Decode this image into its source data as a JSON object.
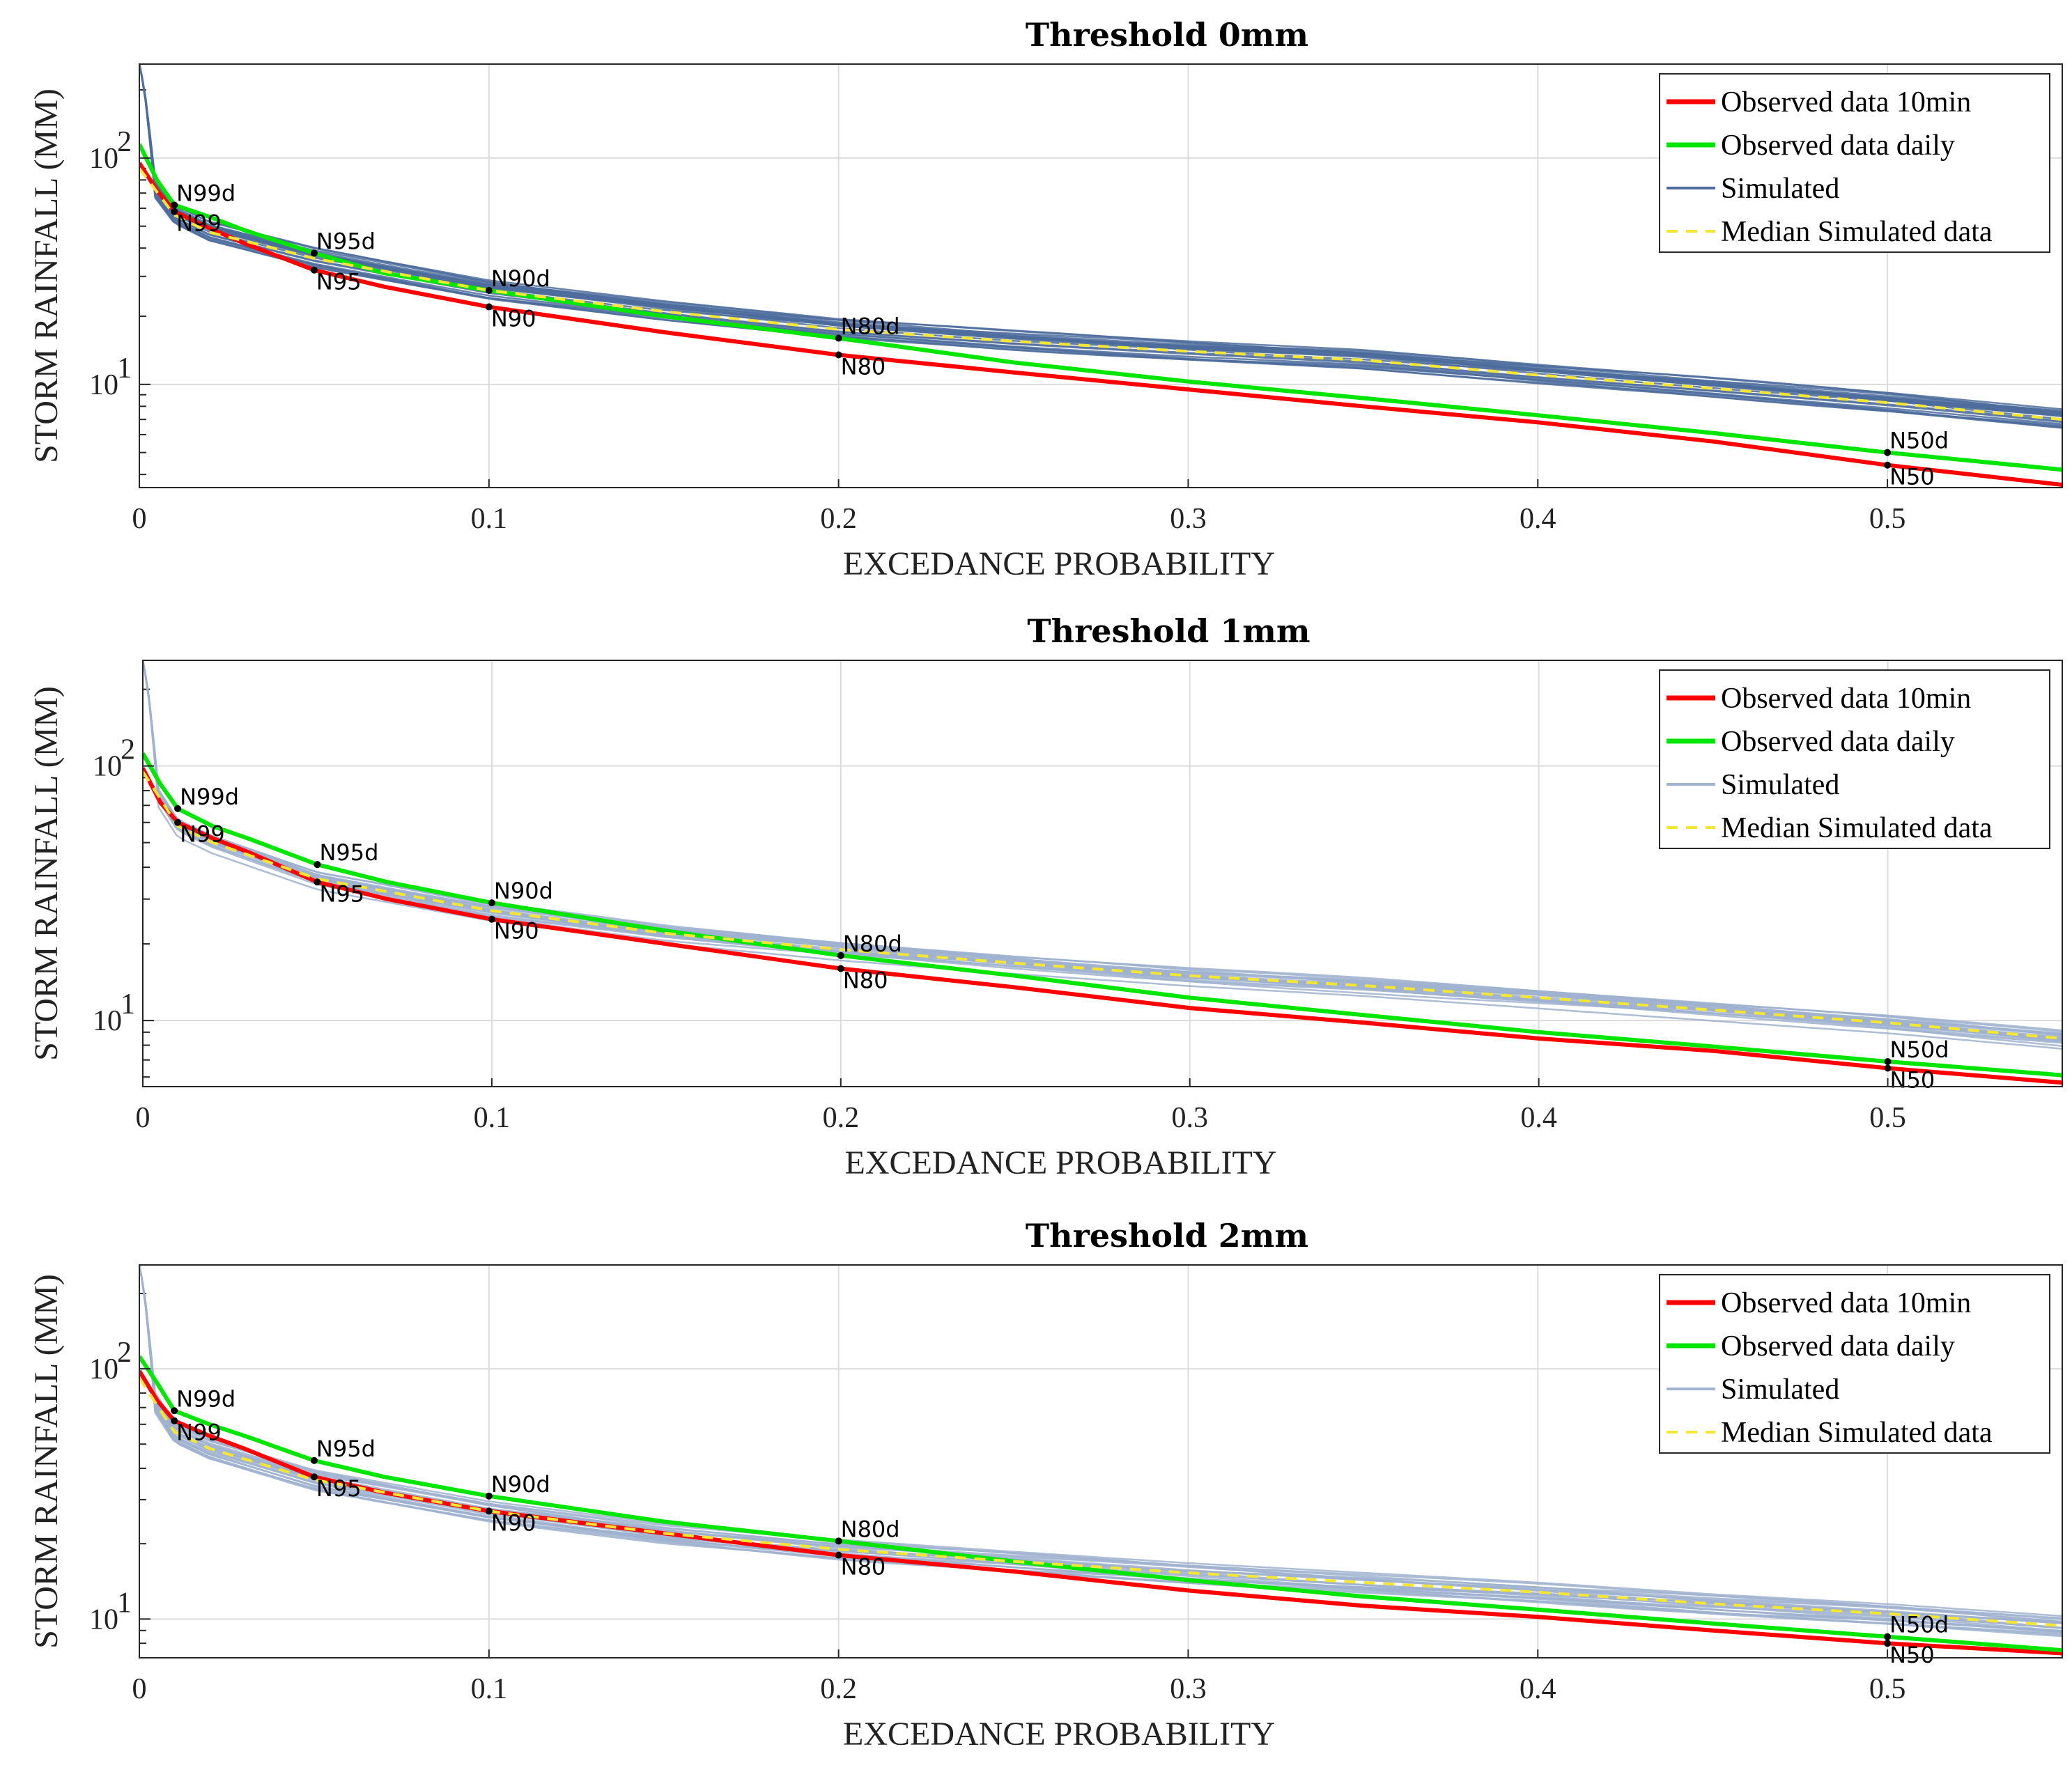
{
  "chart_data": [
    {
      "type": "line",
      "title": "Threshold 0mm",
      "xlabel": "EXCEDANCE PROBABILITY",
      "ylabel": "STORM RAINFALL (MM)",
      "yscale": "log",
      "xlim": [
        0,
        0.55
      ],
      "ylim": [
        3.5,
        260
      ],
      "x_ticks": [
        0,
        0.1,
        0.2,
        0.3,
        0.4,
        0.5
      ],
      "x_tick_labels": [
        "0",
        "0.1",
        "0.2",
        "0.3",
        "0.4",
        "0.5"
      ],
      "y_ticks": [
        10,
        100
      ],
      "y_tick_labels": [
        {
          "base": "10",
          "exp": "1"
        },
        {
          "base": "10",
          "exp": "2"
        }
      ],
      "grid": true,
      "legend": {
        "position": "top-right",
        "entries": [
          {
            "label": "Observed data 10min",
            "color": "#ff0000",
            "style": "solid"
          },
          {
            "label": "Observed data daily",
            "color": "#00e600",
            "style": "solid"
          },
          {
            "label": "Simulated",
            "color": "#4c6c9c",
            "style": "solid"
          },
          {
            "label": "Median Simulated data",
            "color": "#f5e632",
            "style": "dashed"
          }
        ]
      },
      "series": [
        {
          "name": "Observed data 10min",
          "color": "#ff0000",
          "points": [
            [
              0,
              95
            ],
            [
              0.005,
              72
            ],
            [
              0.01,
              58
            ],
            [
              0.02,
              49
            ],
            [
              0.03,
              42
            ],
            [
              0.05,
              32
            ],
            [
              0.07,
              27
            ],
            [
              0.1,
              22
            ],
            [
              0.15,
              17
            ],
            [
              0.2,
              13.5
            ],
            [
              0.25,
              11.3
            ],
            [
              0.3,
              9.5
            ],
            [
              0.35,
              8.0
            ],
            [
              0.4,
              6.8
            ],
            [
              0.45,
              5.6
            ],
            [
              0.5,
              4.4
            ],
            [
              0.55,
              3.6
            ]
          ]
        },
        {
          "name": "Observed data daily",
          "color": "#00e600",
          "points": [
            [
              0,
              115
            ],
            [
              0.005,
              80
            ],
            [
              0.01,
              62
            ],
            [
              0.02,
              55
            ],
            [
              0.03,
              48
            ],
            [
              0.05,
              38
            ],
            [
              0.07,
              31
            ],
            [
              0.1,
              26
            ],
            [
              0.15,
              20
            ],
            [
              0.2,
              16
            ],
            [
              0.25,
              12.5
            ],
            [
              0.3,
              10.3
            ],
            [
              0.35,
              8.7
            ],
            [
              0.4,
              7.3
            ],
            [
              0.45,
              6.1
            ],
            [
              0.5,
              5.0
            ],
            [
              0.55,
              4.2
            ]
          ]
        },
        {
          "name": "Median Simulated data",
          "color": "#f5e632",
          "points": [
            [
              0,
              90
            ],
            [
              0.01,
              56
            ],
            [
              0.02,
              47
            ],
            [
              0.05,
              36
            ],
            [
              0.1,
              26
            ],
            [
              0.15,
              21
            ],
            [
              0.2,
              17.5
            ],
            [
              0.25,
              15.5
            ],
            [
              0.3,
              14
            ],
            [
              0.35,
              12.8
            ],
            [
              0.4,
              11
            ],
            [
              0.45,
              9.6
            ],
            [
              0.5,
              8.3
            ],
            [
              0.55,
              7.0
            ]
          ]
        }
      ],
      "simulated_envelope": {
        "n_runs": 20,
        "spread": 0.11,
        "peak_at_0": 260
      },
      "annotations": [
        {
          "label": "N99d",
          "x": 0.01,
          "y": 62
        },
        {
          "label": "N99",
          "x": 0.01,
          "y": 58
        },
        {
          "label": "N95d",
          "x": 0.05,
          "y": 38
        },
        {
          "label": "N95",
          "x": 0.05,
          "y": 32
        },
        {
          "label": "N90d",
          "x": 0.1,
          "y": 26
        },
        {
          "label": "N90",
          "x": 0.1,
          "y": 22
        },
        {
          "label": "N80d",
          "x": 0.2,
          "y": 16
        },
        {
          "label": "N80",
          "x": 0.2,
          "y": 13.5
        },
        {
          "label": "N50d",
          "x": 0.5,
          "y": 5.0
        },
        {
          "label": "N50",
          "x": 0.5,
          "y": 4.4
        }
      ]
    },
    {
      "type": "line",
      "title": "Threshold 1mm",
      "xlabel": "EXCEDANCE PROBABILITY",
      "ylabel": "STORM RAINFALL (MM)",
      "yscale": "log",
      "xlim": [
        0,
        0.55
      ],
      "ylim": [
        5.5,
        260
      ],
      "x_ticks": [
        0,
        0.1,
        0.2,
        0.3,
        0.4,
        0.5
      ],
      "x_tick_labels": [
        "0",
        "0.1",
        "0.2",
        "0.3",
        "0.4",
        "0.5"
      ],
      "y_ticks": [
        10,
        100
      ],
      "y_tick_labels": [
        {
          "base": "10",
          "exp": "1"
        },
        {
          "base": "10",
          "exp": "2"
        }
      ],
      "grid": true,
      "legend": {
        "position": "top-right",
        "entries": [
          {
            "label": "Observed data 10min",
            "color": "#ff0000",
            "style": "solid"
          },
          {
            "label": "Observed data daily",
            "color": "#00e600",
            "style": "solid"
          },
          {
            "label": "Simulated",
            "color": "#9fb2cf",
            "style": "solid"
          },
          {
            "label": "Median Simulated data",
            "color": "#f5e632",
            "style": "dashed"
          }
        ]
      },
      "series": [
        {
          "name": "Observed data 10min",
          "color": "#ff0000",
          "points": [
            [
              0,
              98
            ],
            [
              0.005,
              72
            ],
            [
              0.01,
              60
            ],
            [
              0.02,
              52
            ],
            [
              0.03,
              46
            ],
            [
              0.05,
              35
            ],
            [
              0.07,
              30
            ],
            [
              0.1,
              25
            ],
            [
              0.15,
              20
            ],
            [
              0.2,
              16
            ],
            [
              0.25,
              13.5
            ],
            [
              0.3,
              11.2
            ],
            [
              0.35,
              9.8
            ],
            [
              0.4,
              8.5
            ],
            [
              0.45,
              7.6
            ],
            [
              0.5,
              6.5
            ],
            [
              0.55,
              5.7
            ]
          ]
        },
        {
          "name": "Observed data daily",
          "color": "#00e600",
          "points": [
            [
              0,
              112
            ],
            [
              0.005,
              85
            ],
            [
              0.01,
              68
            ],
            [
              0.02,
              58
            ],
            [
              0.03,
              52
            ],
            [
              0.05,
              41
            ],
            [
              0.07,
              35
            ],
            [
              0.1,
              29
            ],
            [
              0.15,
              22.5
            ],
            [
              0.2,
              18
            ],
            [
              0.25,
              15
            ],
            [
              0.3,
              12.3
            ],
            [
              0.35,
              10.5
            ],
            [
              0.4,
              9.0
            ],
            [
              0.45,
              7.9
            ],
            [
              0.5,
              6.9
            ],
            [
              0.55,
              6.1
            ]
          ]
        },
        {
          "name": "Median Simulated data",
          "color": "#f5e632",
          "points": [
            [
              0,
              95
            ],
            [
              0.01,
              58
            ],
            [
              0.02,
              50
            ],
            [
              0.05,
              36
            ],
            [
              0.1,
              27
            ],
            [
              0.15,
              22
            ],
            [
              0.2,
              19
            ],
            [
              0.25,
              16.8
            ],
            [
              0.3,
              15
            ],
            [
              0.35,
              13.7
            ],
            [
              0.4,
              12.3
            ],
            [
              0.45,
              11
            ],
            [
              0.5,
              9.8
            ],
            [
              0.55,
              8.5
            ]
          ]
        }
      ],
      "simulated_envelope": {
        "n_runs": 20,
        "spread": 0.1,
        "peak_at_0": 260
      },
      "annotations": [
        {
          "label": "N99d",
          "x": 0.01,
          "y": 68
        },
        {
          "label": "N99",
          "x": 0.01,
          "y": 60
        },
        {
          "label": "N95d",
          "x": 0.05,
          "y": 41
        },
        {
          "label": "N95",
          "x": 0.05,
          "y": 35
        },
        {
          "label": "N90d",
          "x": 0.1,
          "y": 29
        },
        {
          "label": "N90",
          "x": 0.1,
          "y": 25
        },
        {
          "label": "N80d",
          "x": 0.2,
          "y": 18
        },
        {
          "label": "N80",
          "x": 0.2,
          "y": 16
        },
        {
          "label": "N50d",
          "x": 0.5,
          "y": 6.9
        },
        {
          "label": "N50",
          "x": 0.5,
          "y": 6.5
        }
      ]
    },
    {
      "type": "line",
      "title": "Threshold 2mm",
      "xlabel": "EXCEDANCE PROBABILITY",
      "ylabel": "STORM RAINFALL (MM)",
      "yscale": "log",
      "xlim": [
        0,
        0.55
      ],
      "ylim": [
        7,
        260
      ],
      "x_ticks": [
        0,
        0.1,
        0.2,
        0.3,
        0.4,
        0.5
      ],
      "x_tick_labels": [
        "0",
        "0.1",
        "0.2",
        "0.3",
        "0.4",
        "0.5"
      ],
      "y_ticks": [
        10,
        100
      ],
      "y_tick_labels": [
        {
          "base": "10",
          "exp": "1"
        },
        {
          "base": "10",
          "exp": "2"
        }
      ],
      "grid": true,
      "legend": {
        "position": "top-right",
        "entries": [
          {
            "label": "Observed data 10min",
            "color": "#ff0000",
            "style": "solid"
          },
          {
            "label": "Observed data daily",
            "color": "#00e600",
            "style": "solid"
          },
          {
            "label": "Simulated",
            "color": "#9fb2cf",
            "style": "solid"
          },
          {
            "label": "Median Simulated data",
            "color": "#f5e632",
            "style": "dashed"
          }
        ]
      },
      "series": [
        {
          "name": "Observed data 10min",
          "color": "#ff0000",
          "points": [
            [
              0,
              98
            ],
            [
              0.005,
              75
            ],
            [
              0.01,
              62
            ],
            [
              0.02,
              54
            ],
            [
              0.03,
              48
            ],
            [
              0.05,
              37
            ],
            [
              0.07,
              32
            ],
            [
              0.1,
              27
            ],
            [
              0.15,
              22
            ],
            [
              0.2,
              18
            ],
            [
              0.25,
              15.5
            ],
            [
              0.3,
              13
            ],
            [
              0.35,
              11.3
            ],
            [
              0.4,
              10.2
            ],
            [
              0.45,
              9.0
            ],
            [
              0.5,
              8.0
            ],
            [
              0.55,
              7.3
            ]
          ]
        },
        {
          "name": "Observed data daily",
          "color": "#00e600",
          "points": [
            [
              0,
              112
            ],
            [
              0.005,
              88
            ],
            [
              0.01,
              68
            ],
            [
              0.02,
              60
            ],
            [
              0.03,
              54
            ],
            [
              0.05,
              43
            ],
            [
              0.07,
              37
            ],
            [
              0.1,
              31
            ],
            [
              0.15,
              24.5
            ],
            [
              0.2,
              20.5
            ],
            [
              0.25,
              17
            ],
            [
              0.3,
              14.3
            ],
            [
              0.35,
              12.3
            ],
            [
              0.4,
              10.9
            ],
            [
              0.45,
              9.6
            ],
            [
              0.5,
              8.5
            ],
            [
              0.55,
              7.5
            ]
          ]
        },
        {
          "name": "Median Simulated data",
          "color": "#f5e632",
          "points": [
            [
              0,
              92
            ],
            [
              0.01,
              56
            ],
            [
              0.02,
              48
            ],
            [
              0.05,
              36
            ],
            [
              0.1,
              27
            ],
            [
              0.15,
              22
            ],
            [
              0.2,
              19
            ],
            [
              0.25,
              17
            ],
            [
              0.3,
              15.3
            ],
            [
              0.35,
              14
            ],
            [
              0.4,
              12.8
            ],
            [
              0.45,
              11.5
            ],
            [
              0.5,
              10.5
            ],
            [
              0.55,
              9.4
            ]
          ]
        }
      ],
      "simulated_envelope": {
        "n_runs": 20,
        "spread": 0.09,
        "peak_at_0": 260
      },
      "annotations": [
        {
          "label": "N99d",
          "x": 0.01,
          "y": 68
        },
        {
          "label": "N99",
          "x": 0.01,
          "y": 62
        },
        {
          "label": "N95d",
          "x": 0.05,
          "y": 43
        },
        {
          "label": "N95",
          "x": 0.05,
          "y": 37
        },
        {
          "label": "N90d",
          "x": 0.1,
          "y": 31
        },
        {
          "label": "N90",
          "x": 0.1,
          "y": 27
        },
        {
          "label": "N80d",
          "x": 0.2,
          "y": 20.5
        },
        {
          "label": "N80",
          "x": 0.2,
          "y": 18
        },
        {
          "label": "N50d",
          "x": 0.5,
          "y": 8.5
        },
        {
          "label": "N50",
          "x": 0.5,
          "y": 8.0
        }
      ]
    }
  ]
}
